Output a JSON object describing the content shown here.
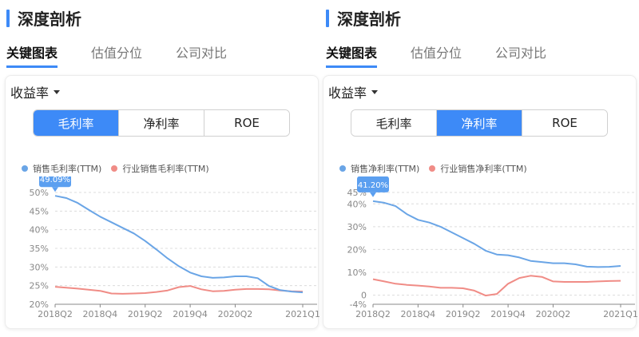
{
  "section_title": "深度剖析",
  "tabs": [
    "关键图表",
    "估值分位",
    "公司对比"
  ],
  "metric_selector": "收益率",
  "segments": [
    "毛利率",
    "净利率",
    "ROE"
  ],
  "colors": {
    "accent": "#3d8af7",
    "company": "#6aa5e6",
    "industry": "#f08c86",
    "grid": "#dcdcdc"
  },
  "panels": [
    {
      "active_segment": 0,
      "legend": [
        "销售毛利率(TTM)",
        "行业销售毛利率(TTM)"
      ],
      "tooltip": "49.09%",
      "chart_data": {
        "type": "line",
        "x_labels": [
          "2018Q2",
          "2018Q4",
          "2019Q2",
          "2019Q4",
          "2020Q2",
          "2021Q1"
        ],
        "x_positions": [
          0,
          2,
          4,
          6,
          8,
          11
        ],
        "ylim": [
          20,
          50
        ],
        "y_ticks": [
          "50%",
          "45%",
          "40%",
          "35%",
          "30%",
          "25%",
          "20%"
        ],
        "y_tick_values": [
          50,
          45,
          40,
          35,
          30,
          25,
          20
        ],
        "series": [
          {
            "name": "销售毛利率(TTM)",
            "x": [
              0,
              0.5,
              1,
              1.5,
              2,
              2.5,
              3,
              3.5,
              4,
              4.5,
              5,
              5.5,
              6,
              6.5,
              7,
              7.5,
              8,
              8.5,
              9,
              9.5,
              10,
              10.5,
              11
            ],
            "values": [
              49.1,
              48.5,
              47.2,
              45.3,
              43.5,
              42.0,
              40.5,
              39.0,
              37.0,
              34.7,
              32.3,
              30.2,
              28.5,
              27.5,
              27.1,
              27.2,
              27.5,
              27.5,
              27.0,
              24.9,
              23.8,
              23.4,
              23.2
            ]
          },
          {
            "name": "行业销售毛利率(TTM)",
            "x": [
              0,
              1,
              2,
              2.5,
              3,
              3.5,
              4,
              4.5,
              5,
              5.5,
              6,
              6.5,
              7,
              7.5,
              8,
              8.5,
              9,
              9.5,
              10,
              10.5,
              11
            ],
            "values": [
              24.7,
              24.2,
              23.6,
              22.9,
              22.8,
              22.9,
              23.0,
              23.3,
              23.7,
              24.6,
              24.9,
              24.0,
              23.5,
              23.6,
              23.9,
              24.1,
              24.1,
              24.0,
              23.7,
              23.5,
              23.4
            ]
          }
        ]
      }
    },
    {
      "active_segment": 1,
      "legend": [
        "销售净利率(TTM)",
        "行业销售净利率(TTM)"
      ],
      "tooltip": "41.20%",
      "chart_data": {
        "type": "line",
        "x_labels": [
          "2018Q2",
          "2018Q4",
          "2019Q2",
          "2019Q4",
          "2020Q2",
          "2021Q1"
        ],
        "x_positions": [
          0,
          2,
          4,
          6,
          8,
          11
        ],
        "ylim": [
          -4,
          45
        ],
        "y_ticks": [
          "45%",
          "40%",
          "30%",
          "20%",
          "10%",
          "0",
          "-4%"
        ],
        "y_tick_values": [
          45,
          40,
          30,
          20,
          10,
          0,
          -4
        ],
        "series": [
          {
            "name": "销售净利率(TTM)",
            "x": [
              0,
              0.5,
              1,
              1.5,
              2,
              2.5,
              3,
              3.5,
              4,
              4.5,
              5,
              5.5,
              6,
              6.5,
              7,
              7.5,
              8,
              8.5,
              9,
              9.5,
              10,
              10.5,
              11
            ],
            "values": [
              41.2,
              40.5,
              39.0,
              35.5,
              33.0,
              31.8,
              30.0,
              27.5,
              25.0,
              22.5,
              19.5,
              17.8,
              17.5,
              16.5,
              15.0,
              14.5,
              14.0,
              14.0,
              13.5,
              12.5,
              12.3,
              12.4,
              12.8
            ]
          },
          {
            "name": "行业销售净利率(TTM)",
            "x": [
              0,
              0.5,
              1,
              1.5,
              2,
              2.5,
              3,
              3.5,
              4,
              4.5,
              5,
              5.5,
              6,
              6.5,
              7,
              7.5,
              8,
              8.5,
              9,
              9.5,
              10,
              10.5,
              11
            ],
            "values": [
              7.0,
              6.0,
              5.0,
              4.5,
              4.2,
              3.8,
              3.2,
              3.2,
              3.0,
              2.0,
              -0.2,
              0.5,
              5.0,
              7.5,
              8.5,
              8.0,
              6.0,
              5.8,
              5.8,
              5.8,
              6.0,
              6.2,
              6.3
            ]
          }
        ]
      }
    }
  ]
}
